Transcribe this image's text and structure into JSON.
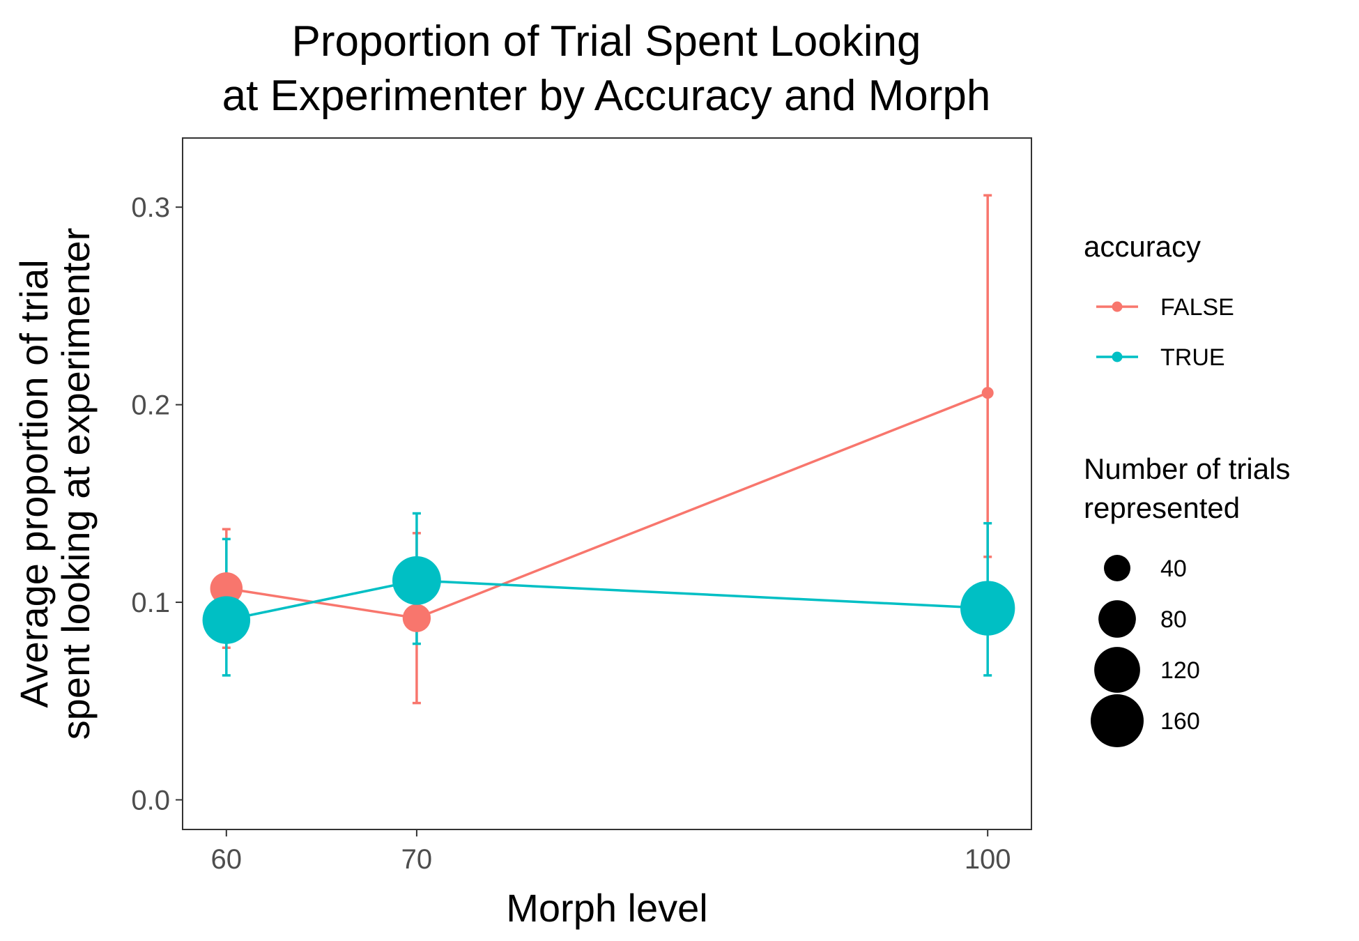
{
  "chart_data": {
    "type": "line",
    "title": [
      "Proportion of Trial Spent Looking",
      "at Experimenter by Accuracy and Morph"
    ],
    "xlabel": "Morph level",
    "ylabel": [
      "Average proportion of trial",
      "spent looking at experimenter"
    ],
    "x_ticks": [
      60,
      70,
      100
    ],
    "y_ticks": [
      0.0,
      0.1,
      0.2,
      0.3
    ],
    "y_tick_labels": [
      "0.0",
      "0.1",
      "0.2",
      "0.3"
    ],
    "xlim": [
      57.7,
      102.3
    ],
    "ylim": [
      -0.015,
      0.335
    ],
    "grid": false,
    "legend_position": "right",
    "series": [
      {
        "name": "FALSE",
        "color": "#F8766D",
        "points": [
          {
            "x": 60,
            "y": 0.107,
            "ymin": 0.077,
            "ymax": 0.137,
            "n": 60
          },
          {
            "x": 70,
            "y": 0.092,
            "ymin": 0.049,
            "ymax": 0.135,
            "n": 45
          },
          {
            "x": 100,
            "y": 0.206,
            "ymin": 0.123,
            "ymax": 0.306,
            "n": 8
          }
        ]
      },
      {
        "name": "TRUE",
        "color": "#00BFC4",
        "points": [
          {
            "x": 60,
            "y": 0.091,
            "ymin": 0.063,
            "ymax": 0.132,
            "n": 130
          },
          {
            "x": 70,
            "y": 0.111,
            "ymin": 0.079,
            "ymax": 0.145,
            "n": 135
          },
          {
            "x": 100,
            "y": 0.097,
            "ymin": 0.063,
            "ymax": 0.14,
            "n": 170
          }
        ]
      }
    ],
    "legend_color": {
      "title": "accuracy",
      "entries": [
        "FALSE",
        "TRUE"
      ]
    },
    "legend_size": {
      "title": [
        "Number of trials",
        "represented"
      ],
      "values": [
        40,
        80,
        120,
        160
      ],
      "labels": [
        "40",
        "80",
        "120",
        "160"
      ]
    }
  }
}
